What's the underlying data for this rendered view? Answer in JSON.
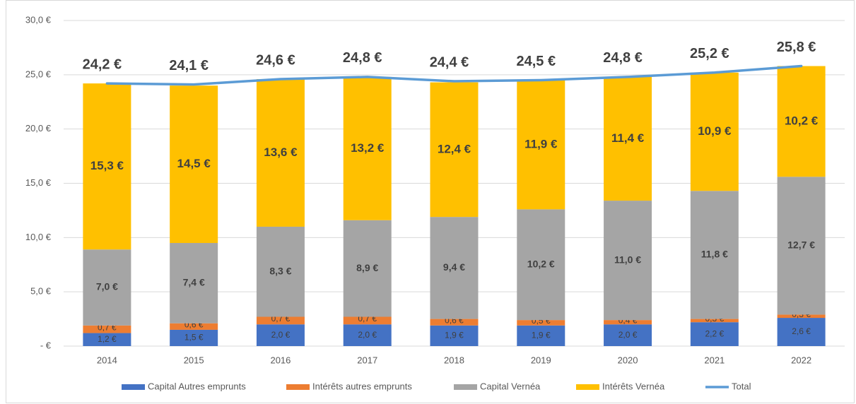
{
  "chart_data": {
    "type": "stacked-bar-line",
    "categories": [
      "2014",
      "2015",
      "2016",
      "2017",
      "2018",
      "2019",
      "2020",
      "2021",
      "2022"
    ],
    "series": [
      {
        "name": "Capital Autres emprunts",
        "color": "#4472c4",
        "type": "bar",
        "values": [
          1.2,
          1.5,
          2.0,
          2.0,
          1.9,
          1.9,
          2.0,
          2.2,
          2.6
        ],
        "value_labels": [
          "1,2 €",
          "1,5 €",
          "2,0 €",
          "2,0 €",
          "1,9 €",
          "1,9 €",
          "2,0 €",
          "2,2 €",
          "2,6 €"
        ]
      },
      {
        "name": "Intérêts autres emprunts",
        "color": "#ed7d31",
        "type": "bar",
        "values": [
          0.7,
          0.6,
          0.7,
          0.7,
          0.6,
          0.5,
          0.4,
          0.3,
          0.3
        ],
        "value_labels": [
          "0,7 €",
          "0,6 €",
          "0,7 €",
          "0,7 €",
          "0,6 €",
          "0,5 €",
          "0,4 €",
          "0,3 €",
          "0,3 €"
        ]
      },
      {
        "name": "Capital Vernéa",
        "color": "#a5a5a5",
        "type": "bar",
        "values": [
          7.0,
          7.4,
          8.3,
          8.9,
          9.4,
          10.2,
          11.0,
          11.8,
          12.7
        ],
        "value_labels": [
          "7,0 €",
          "7,4 €",
          "8,3 €",
          "8,9 €",
          "9,4 €",
          "10,2 €",
          "11,0 €",
          "11,8 €",
          "12,7 €"
        ]
      },
      {
        "name": "Intérêts Vernéa",
        "color": "#ffc000",
        "type": "bar",
        "values": [
          15.3,
          14.5,
          13.6,
          13.2,
          12.4,
          11.9,
          11.4,
          10.9,
          10.2
        ],
        "value_labels": [
          "15,3 €",
          "14,5 €",
          "13,6 €",
          "13,2 €",
          "12,4 €",
          "11,9 €",
          "11,4 €",
          "10,9 €",
          "10,2 €"
        ]
      },
      {
        "name": "Total",
        "color": "#5b9bd5",
        "type": "line",
        "values": [
          24.2,
          24.1,
          24.6,
          24.8,
          24.4,
          24.5,
          24.8,
          25.2,
          25.8
        ],
        "value_labels": [
          "24,2 €",
          "24,1 €",
          "24,6 €",
          "24,8 €",
          "24,4 €",
          "24,5 €",
          "24,8 €",
          "25,2 €",
          "25,8 €"
        ]
      }
    ],
    "ylim": [
      0,
      30
    ],
    "yticks": [
      {
        "value": 0,
        "label": "-  €"
      },
      {
        "value": 5,
        "label": "5,0 €"
      },
      {
        "value": 10,
        "label": "10,0 €"
      },
      {
        "value": 15,
        "label": "15,0 €"
      },
      {
        "value": 20,
        "label": "20,0 €"
      },
      {
        "value": 25,
        "label": "25,0 €"
      },
      {
        "value": 30,
        "label": "30,0 €"
      }
    ],
    "grid": true,
    "legend": "bottom"
  }
}
